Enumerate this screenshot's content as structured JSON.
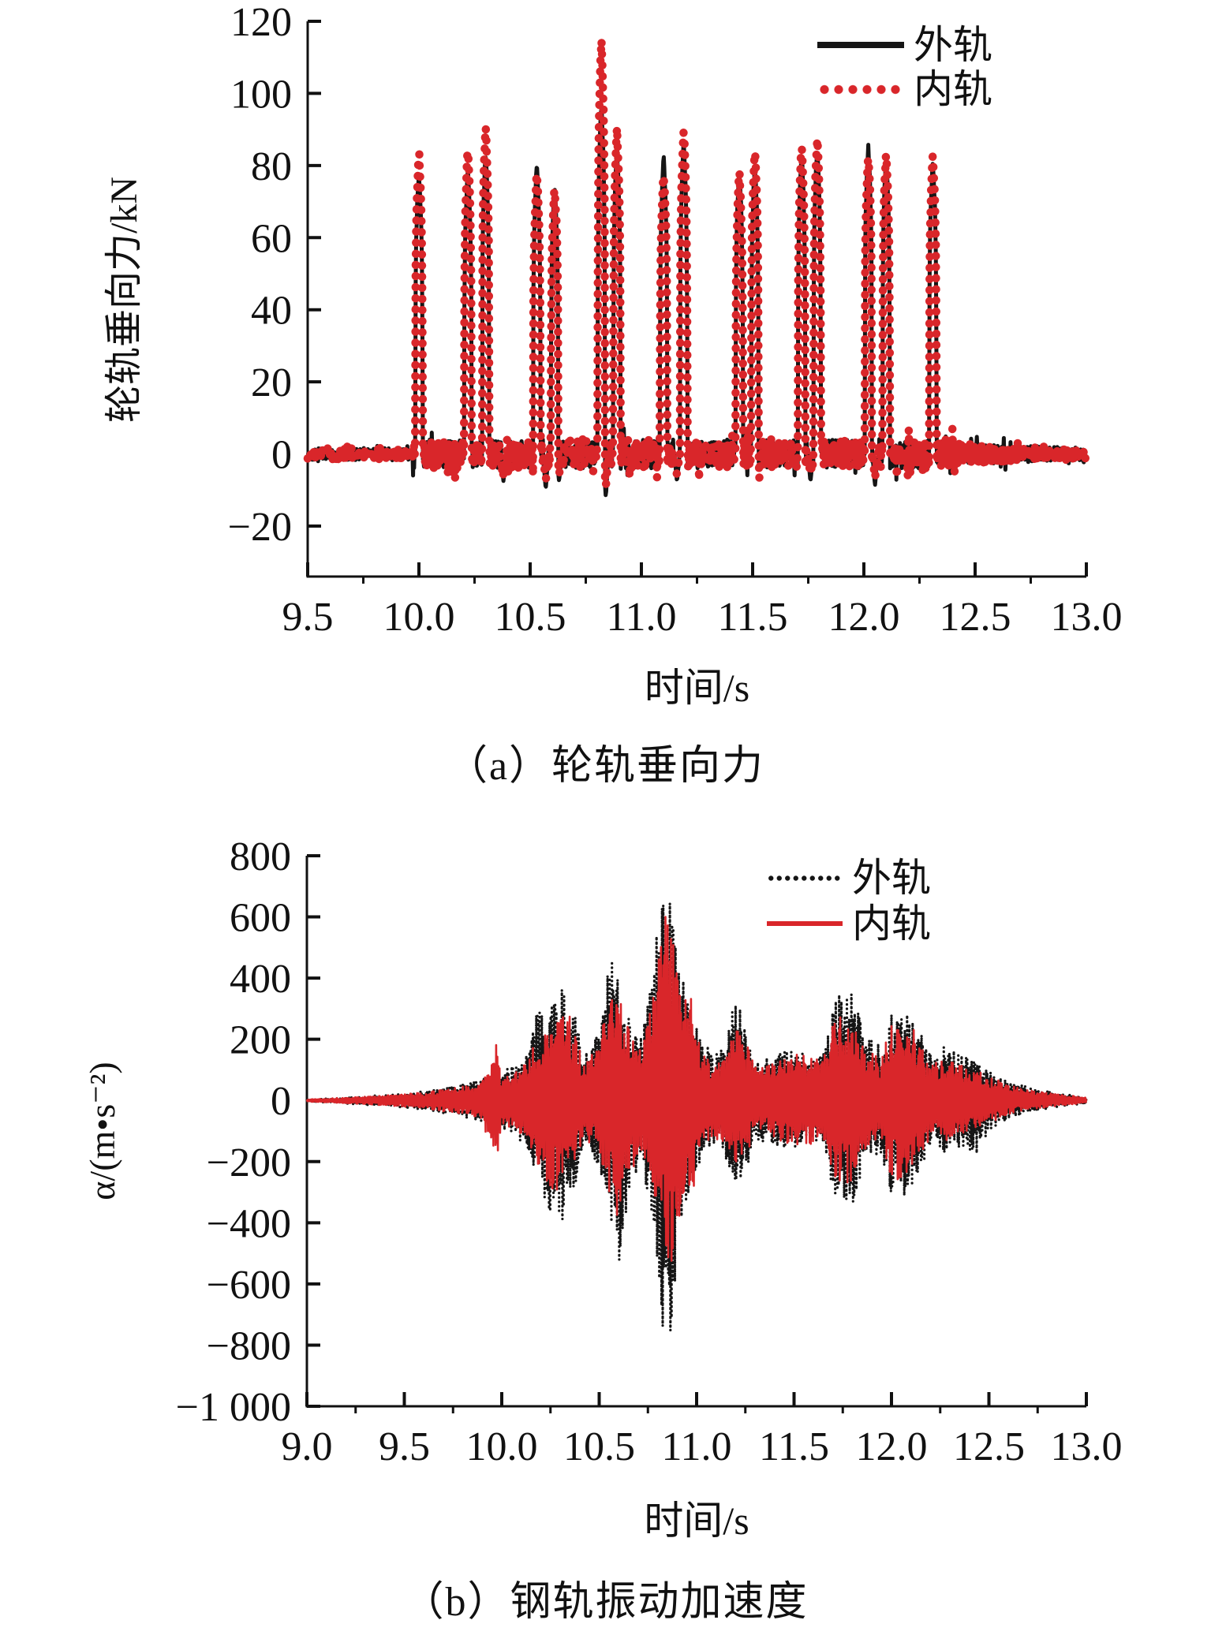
{
  "figure": {
    "background": "#ffffff",
    "axis_color": "#111111"
  },
  "chart_data": [
    {
      "id": "a",
      "type": "line",
      "caption": "（a）轮轨垂向力",
      "xlabel": "时间/s",
      "ylabel": "轮轨垂向力/kN",
      "xlim": [
        9.5,
        13.0
      ],
      "ylim": [
        -34,
        120
      ],
      "xticks": {
        "values": [
          9.5,
          10.0,
          10.5,
          11.0,
          11.5,
          12.0,
          12.5,
          13.0
        ],
        "labels": [
          "9.5",
          "10.0",
          "10.5",
          "11.0",
          "11.5",
          "12.0",
          "12.5",
          "13.0"
        ]
      },
      "yticks": {
        "values": [
          120,
          100,
          80,
          60,
          40,
          20,
          0,
          -20
        ],
        "labels": [
          "120",
          "100",
          "80",
          "60",
          "40",
          "20",
          "0",
          "−20"
        ]
      },
      "grid": false,
      "legend_position": "top-right-inside",
      "legend": [
        {
          "label": "外轨",
          "color": "#151515",
          "style": "solid"
        },
        {
          "label": "内轨",
          "color": "#d9262a",
          "style": "dotted"
        }
      ],
      "units": "kN",
      "baseline_noise_kN": 4,
      "pulses": [
        {
          "t": 10.0,
          "outer": 78,
          "inner": 84
        },
        {
          "t": 10.22,
          "outer": 79,
          "inner": 85
        },
        {
          "t": 10.3,
          "outer": 83,
          "inner": 90
        },
        {
          "t": 10.53,
          "outer": 80,
          "inner": 78
        },
        {
          "t": 10.61,
          "outer": 74,
          "inner": 74
        },
        {
          "t": 10.82,
          "outer": 97,
          "inner": 115
        },
        {
          "t": 10.89,
          "outer": 85,
          "inner": 90
        },
        {
          "t": 11.1,
          "outer": 82,
          "inner": 78
        },
        {
          "t": 11.19,
          "outer": 86,
          "inner": 90
        },
        {
          "t": 11.44,
          "outer": 79,
          "inner": 78
        },
        {
          "t": 11.51,
          "outer": 80,
          "inner": 85
        },
        {
          "t": 11.72,
          "outer": 84,
          "inner": 86
        },
        {
          "t": 11.79,
          "outer": 85,
          "inner": 88
        },
        {
          "t": 12.02,
          "outer": 85,
          "inner": 83
        },
        {
          "t": 12.1,
          "outer": 83,
          "inner": 84
        },
        {
          "t": 12.31,
          "outer": 81,
          "inner": 83
        }
      ],
      "dips": [
        {
          "t": 10.38,
          "v": -7
        },
        {
          "t": 10.57,
          "v": -9
        },
        {
          "t": 10.63,
          "v": -7
        },
        {
          "t": 10.84,
          "v": -11
        },
        {
          "t": 10.9,
          "v": -9
        },
        {
          "t": 11.16,
          "v": -7
        },
        {
          "t": 11.52,
          "v": -6
        },
        {
          "t": 11.76,
          "v": -7
        },
        {
          "t": 12.05,
          "v": -8
        },
        {
          "t": 12.32,
          "v": -6
        }
      ]
    },
    {
      "id": "b",
      "type": "line",
      "caption": "（b）钢轨振动加速度",
      "xlabel": "时间/s",
      "ylabel": "α/(m•s⁻²)",
      "xlim": [
        9.0,
        13.0
      ],
      "ylim": [
        -1000,
        800
      ],
      "xticks": {
        "values": [
          9.0,
          9.5,
          10.0,
          10.5,
          11.0,
          11.5,
          12.0,
          12.5,
          13.0
        ],
        "labels": [
          "9.0",
          "9.5",
          "10.0",
          "10.5",
          "11.0",
          "11.5",
          "12.0",
          "12.5",
          "13.0"
        ]
      },
      "yticks": {
        "values": [
          800,
          600,
          400,
          200,
          0,
          -200,
          -400,
          -600,
          -800,
          -1000
        ],
        "labels": [
          "800",
          "600",
          "400",
          "200",
          "0",
          "−200",
          "−400",
          "−600",
          "−800",
          "−1 000"
        ]
      },
      "grid": false,
      "legend_position": "top-right-inside",
      "legend": [
        {
          "label": "外轨",
          "color": "#151515",
          "style": "dotted"
        },
        {
          "label": "内轨",
          "color": "#d9262a",
          "style": "solid"
        }
      ],
      "units": "m·s⁻²",
      "envelope": {
        "t": [
          9.0,
          9.2,
          9.4,
          9.6,
          9.8,
          9.9,
          9.97,
          10.0,
          10.05,
          10.12,
          10.2,
          10.25,
          10.3,
          10.35,
          10.42,
          10.5,
          10.55,
          10.6,
          10.65,
          10.72,
          10.78,
          10.83,
          10.87,
          10.92,
          10.97,
          11.02,
          11.08,
          11.15,
          11.2,
          11.25,
          11.3,
          11.38,
          11.45,
          11.52,
          11.58,
          11.65,
          11.7,
          11.75,
          11.8,
          11.87,
          11.95,
          12.0,
          12.05,
          12.1,
          12.17,
          12.22,
          12.28,
          12.35,
          12.42,
          12.5,
          12.6,
          12.7,
          12.85,
          13.0
        ],
        "outer_pos": [
          4,
          10,
          18,
          30,
          55,
          75,
          90,
          95,
          110,
          150,
          330,
          350,
          380,
          350,
          150,
          230,
          460,
          430,
          300,
          210,
          480,
          730,
          650,
          420,
          300,
          210,
          160,
          210,
          330,
          280,
          140,
          150,
          170,
          160,
          150,
          150,
          330,
          380,
          350,
          200,
          190,
          300,
          290,
          280,
          200,
          170,
          190,
          170,
          150,
          100,
          65,
          45,
          25,
          12
        ],
        "outer_neg": [
          4,
          10,
          18,
          30,
          55,
          75,
          90,
          95,
          110,
          150,
          300,
          370,
          430,
          360,
          150,
          220,
          350,
          580,
          300,
          200,
          450,
          780,
          750,
          400,
          280,
          200,
          150,
          200,
          290,
          240,
          130,
          140,
          160,
          150,
          140,
          140,
          320,
          390,
          350,
          190,
          180,
          330,
          350,
          300,
          190,
          160,
          180,
          160,
          200,
          100,
          60,
          40,
          22,
          10
        ],
        "inner_pos": [
          4,
          9,
          16,
          26,
          45,
          60,
          190,
          80,
          90,
          120,
          230,
          260,
          300,
          280,
          120,
          180,
          390,
          380,
          250,
          170,
          380,
          630,
          550,
          350,
          350,
          180,
          130,
          150,
          260,
          200,
          110,
          120,
          150,
          160,
          155,
          130,
          260,
          290,
          280,
          160,
          150,
          250,
          260,
          250,
          160,
          120,
          150,
          130,
          100,
          80,
          50,
          35,
          20,
          10
        ],
        "inner_neg": [
          4,
          9,
          16,
          26,
          45,
          60,
          235,
          80,
          90,
          120,
          230,
          290,
          300,
          270,
          120,
          170,
          300,
          400,
          250,
          160,
          350,
          420,
          620,
          350,
          330,
          170,
          120,
          140,
          230,
          190,
          100,
          110,
          140,
          150,
          145,
          120,
          250,
          280,
          270,
          150,
          140,
          260,
          260,
          240,
          150,
          110,
          140,
          120,
          90,
          75,
          45,
          30,
          18,
          8
        ]
      }
    }
  ]
}
